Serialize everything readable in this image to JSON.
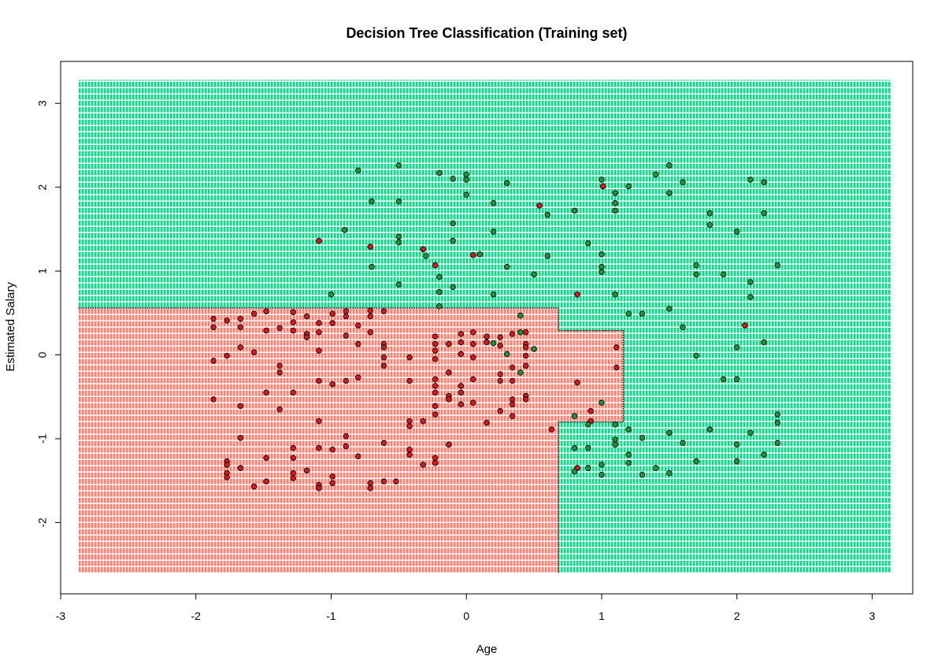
{
  "chart_data": {
    "type": "scatter",
    "title": "Decision Tree Classification (Training set)",
    "xlabel": "Age",
    "ylabel": "Estimated Salary",
    "xlim": [
      -3.0,
      3.3
    ],
    "ylim": [
      -2.85,
      3.5
    ],
    "x_ticks": [
      "-3",
      "-2",
      "-1",
      "0",
      "1",
      "2",
      "3"
    ],
    "y_ticks": [
      "-2",
      "-1",
      "0",
      "1",
      "2",
      "3"
    ],
    "grid": false,
    "legend": "none",
    "colors": {
      "region_0": "#fa8072",
      "region_1": "#19d38b",
      "point_0": "#d7191c",
      "point_1": "#1a9641",
      "point_border": "#000000"
    },
    "grid_extent": {
      "x": [
        -2.87,
        3.14
      ],
      "y": [
        -2.6,
        3.28
      ]
    },
    "regions_class0": [
      {
        "x": [
          -2.87,
          0.68
        ],
        "y": [
          -2.6,
          0.56
        ]
      },
      {
        "x": [
          0.68,
          1.16
        ],
        "y": [
          -0.8,
          0.29
        ]
      }
    ],
    "series": [
      {
        "class": 0,
        "points": [
          [
            -1.87,
            0.43
          ],
          [
            -1.87,
            0.33
          ],
          [
            -1.87,
            -0.07
          ],
          [
            -1.87,
            -0.53
          ],
          [
            -1.77,
            0.41
          ],
          [
            -1.77,
            -0.01
          ],
          [
            -1.77,
            -1.27
          ],
          [
            -1.77,
            -1.31
          ],
          [
            -1.77,
            -1.41
          ],
          [
            -1.77,
            -1.46
          ],
          [
            -1.67,
            0.43
          ],
          [
            -1.67,
            0.33
          ],
          [
            -1.67,
            0.09
          ],
          [
            -1.67,
            -0.61
          ],
          [
            -1.67,
            -0.99
          ],
          [
            -1.67,
            -1.35
          ],
          [
            -1.57,
            0.49
          ],
          [
            -1.57,
            0.03
          ],
          [
            -1.57,
            -1.57
          ],
          [
            -1.48,
            0.52
          ],
          [
            -1.48,
            0.29
          ],
          [
            -1.48,
            -0.45
          ],
          [
            -1.48,
            -1.23
          ],
          [
            -1.48,
            -1.51
          ],
          [
            -1.38,
            0.32
          ],
          [
            -1.38,
            -0.13
          ],
          [
            -1.38,
            -0.21
          ],
          [
            -1.38,
            -0.65
          ],
          [
            -1.28,
            0.51
          ],
          [
            -1.28,
            0.39
          ],
          [
            -1.28,
            0.29
          ],
          [
            -1.28,
            -0.45
          ],
          [
            -1.28,
            -1.11
          ],
          [
            -1.28,
            -1.23
          ],
          [
            -1.28,
            -1.41
          ],
          [
            -1.28,
            -1.47
          ],
          [
            -1.18,
            0.46
          ],
          [
            -1.18,
            0.25
          ],
          [
            -1.18,
            0.21
          ],
          [
            -1.18,
            -1.38
          ],
          [
            -1.09,
            1.36
          ],
          [
            -1.09,
            0.38
          ],
          [
            -1.09,
            0.27
          ],
          [
            -1.09,
            0.05
          ],
          [
            -1.09,
            -0.31
          ],
          [
            -1.09,
            -0.79
          ],
          [
            -1.09,
            -1.11
          ],
          [
            -1.09,
            -1.55
          ],
          [
            -1.09,
            -1.59
          ],
          [
            -0.99,
            0.49
          ],
          [
            -0.99,
            0.38
          ],
          [
            -0.99,
            -0.35
          ],
          [
            -0.99,
            -1.13
          ],
          [
            -0.99,
            -1.45
          ],
          [
            -0.99,
            -1.53
          ],
          [
            -0.89,
            0.52
          ],
          [
            -0.89,
            0.46
          ],
          [
            -0.89,
            0.23
          ],
          [
            -0.89,
            -0.31
          ],
          [
            -0.89,
            -0.97
          ],
          [
            -0.89,
            -1.09
          ],
          [
            -0.8,
            0.35
          ],
          [
            -0.8,
            0.13
          ],
          [
            -0.8,
            -0.27
          ],
          [
            -0.8,
            -1.21
          ],
          [
            -0.71,
            1.29
          ],
          [
            -0.71,
            0.53
          ],
          [
            -0.71,
            0.46
          ],
          [
            -0.71,
            0.27
          ],
          [
            -0.71,
            -1.53
          ],
          [
            -0.71,
            -1.59
          ],
          [
            -0.61,
            0.52
          ],
          [
            -0.61,
            0.13
          ],
          [
            -0.61,
            0.09
          ],
          [
            -0.61,
            -0.03
          ],
          [
            -0.61,
            -0.13
          ],
          [
            -0.61,
            -1.05
          ],
          [
            -0.61,
            -1.51
          ],
          [
            -0.52,
            -1.51
          ],
          [
            -0.42,
            -0.03
          ],
          [
            -0.42,
            -0.31
          ],
          [
            -0.42,
            -0.79
          ],
          [
            -0.42,
            -0.85
          ],
          [
            -0.42,
            -1.13
          ],
          [
            -0.42,
            -1.19
          ],
          [
            -0.32,
            1.26
          ],
          [
            -0.32,
            -0.79
          ],
          [
            -0.32,
            -1.31
          ],
          [
            -0.23,
            1.07
          ],
          [
            -0.23,
            0.22
          ],
          [
            -0.23,
            0.13
          ],
          [
            -0.23,
            0.05
          ],
          [
            -0.23,
            -0.05
          ],
          [
            -0.23,
            -0.29
          ],
          [
            -0.23,
            -0.37
          ],
          [
            -0.23,
            -0.45
          ],
          [
            -0.23,
            -0.61
          ],
          [
            -0.23,
            -0.71
          ],
          [
            -0.23,
            -1.23
          ],
          [
            -0.23,
            -1.29
          ],
          [
            -0.13,
            0.13
          ],
          [
            -0.13,
            -0.21
          ],
          [
            -0.13,
            -0.49
          ],
          [
            -0.13,
            -0.53
          ],
          [
            -0.13,
            -1.07
          ],
          [
            -0.04,
            0.25
          ],
          [
            -0.04,
            0.15
          ],
          [
            -0.04,
            0.01
          ],
          [
            -0.04,
            -0.37
          ],
          [
            -0.04,
            -0.45
          ],
          [
            -0.04,
            -0.59
          ],
          [
            0.05,
            1.19
          ],
          [
            0.05,
            0.27
          ],
          [
            0.05,
            0.13
          ],
          [
            0.05,
            -0.03
          ],
          [
            0.05,
            -0.29
          ],
          [
            0.05,
            -0.57
          ],
          [
            0.15,
            0.22
          ],
          [
            0.15,
            0.15
          ],
          [
            0.15,
            -0.81
          ],
          [
            0.25,
            0.21
          ],
          [
            0.25,
            0.11
          ],
          [
            0.25,
            -0.23
          ],
          [
            0.25,
            -0.31
          ],
          [
            0.25,
            -0.67
          ],
          [
            0.34,
            0.25
          ],
          [
            0.34,
            -0.15
          ],
          [
            0.34,
            -0.31
          ],
          [
            0.34,
            -0.53
          ],
          [
            0.34,
            -0.59
          ],
          [
            0.34,
            -0.73
          ],
          [
            0.44,
            0.27
          ],
          [
            0.44,
            0.13
          ],
          [
            0.44,
            0.09
          ],
          [
            0.44,
            -0.01
          ],
          [
            0.44,
            -0.13
          ],
          [
            0.44,
            -0.49
          ],
          [
            0.44,
            -0.53
          ],
          [
            0.54,
            1.78
          ],
          [
            0.63,
            -0.89
          ],
          [
            0.82,
            0.72
          ],
          [
            0.82,
            -0.33
          ],
          [
            0.82,
            -1.35
          ],
          [
            0.92,
            -0.67
          ],
          [
            0.92,
            -0.79
          ],
          [
            1.01,
            2.01
          ],
          [
            1.11,
            0.09
          ],
          [
            1.11,
            -0.15
          ],
          [
            2.06,
            0.35
          ]
        ]
      },
      {
        "class": 1,
        "points": [
          [
            -1.0,
            0.72
          ],
          [
            -0.9,
            1.49
          ],
          [
            -0.8,
            2.2
          ],
          [
            -0.7,
            1.83
          ],
          [
            -0.7,
            1.05
          ],
          [
            -0.5,
            2.26
          ],
          [
            -0.5,
            1.83
          ],
          [
            -0.5,
            1.41
          ],
          [
            -0.5,
            1.34
          ],
          [
            -0.5,
            0.84
          ],
          [
            -0.3,
            1.18
          ],
          [
            -0.2,
            2.17
          ],
          [
            -0.2,
            0.93
          ],
          [
            -0.2,
            0.75
          ],
          [
            -0.2,
            0.58
          ],
          [
            -0.1,
            2.1
          ],
          [
            -0.1,
            1.57
          ],
          [
            -0.1,
            1.36
          ],
          [
            -0.1,
            0.81
          ],
          [
            0.0,
            2.15
          ],
          [
            0.0,
            2.09
          ],
          [
            0.0,
            1.91
          ],
          [
            0.1,
            1.2
          ],
          [
            0.2,
            1.81
          ],
          [
            0.2,
            1.47
          ],
          [
            0.2,
            0.72
          ],
          [
            0.2,
            0.14
          ],
          [
            0.3,
            2.05
          ],
          [
            0.3,
            1.05
          ],
          [
            0.3,
            0.01
          ],
          [
            0.4,
            0.47
          ],
          [
            0.4,
            0.27
          ],
          [
            0.4,
            -0.21
          ],
          [
            0.5,
            0.96
          ],
          [
            0.5,
            0.07
          ],
          [
            0.6,
            1.67
          ],
          [
            0.6,
            1.18
          ],
          [
            0.8,
            1.72
          ],
          [
            0.8,
            -0.73
          ],
          [
            0.8,
            -1.11
          ],
          [
            0.8,
            -1.39
          ],
          [
            0.9,
            1.33
          ],
          [
            0.9,
            -0.83
          ],
          [
            0.9,
            -1.11
          ],
          [
            0.9,
            -1.35
          ],
          [
            1.0,
            2.09
          ],
          [
            1.0,
            1.2
          ],
          [
            1.0,
            1.05
          ],
          [
            1.0,
            0.99
          ],
          [
            1.0,
            -0.57
          ],
          [
            1.0,
            -1.31
          ],
          [
            1.0,
            -1.43
          ],
          [
            1.1,
            1.93
          ],
          [
            1.1,
            1.81
          ],
          [
            1.1,
            1.72
          ],
          [
            1.1,
            0.72
          ],
          [
            1.1,
            -0.83
          ],
          [
            1.1,
            -1.01
          ],
          [
            1.1,
            -1.07
          ],
          [
            1.2,
            2.01
          ],
          [
            1.2,
            0.49
          ],
          [
            1.2,
            -0.89
          ],
          [
            1.2,
            -1.19
          ],
          [
            1.2,
            -1.29
          ],
          [
            1.3,
            0.49
          ],
          [
            1.3,
            -0.99
          ],
          [
            1.3,
            -1.43
          ],
          [
            1.4,
            2.15
          ],
          [
            1.4,
            -1.35
          ],
          [
            1.5,
            2.26
          ],
          [
            1.5,
            1.93
          ],
          [
            1.5,
            0.55
          ],
          [
            1.5,
            -0.93
          ],
          [
            1.5,
            -1.41
          ],
          [
            1.6,
            2.06
          ],
          [
            1.6,
            0.33
          ],
          [
            1.6,
            -1.05
          ],
          [
            1.7,
            1.07
          ],
          [
            1.7,
            0.96
          ],
          [
            1.7,
            -0.01
          ],
          [
            1.7,
            -1.27
          ],
          [
            1.8,
            1.69
          ],
          [
            1.8,
            1.55
          ],
          [
            1.8,
            -0.89
          ],
          [
            1.9,
            0.96
          ],
          [
            1.9,
            -0.29
          ],
          [
            2.0,
            1.47
          ],
          [
            2.0,
            0.09
          ],
          [
            2.0,
            -0.29
          ],
          [
            2.0,
            -1.07
          ],
          [
            2.0,
            -1.27
          ],
          [
            2.1,
            2.09
          ],
          [
            2.1,
            0.87
          ],
          [
            2.1,
            0.69
          ],
          [
            2.1,
            -0.93
          ],
          [
            2.2,
            2.06
          ],
          [
            2.2,
            1.69
          ],
          [
            2.2,
            0.15
          ],
          [
            2.2,
            -1.19
          ],
          [
            2.3,
            1.07
          ],
          [
            2.3,
            -0.71
          ],
          [
            2.3,
            -0.81
          ],
          [
            2.3,
            -1.05
          ]
        ]
      }
    ]
  }
}
